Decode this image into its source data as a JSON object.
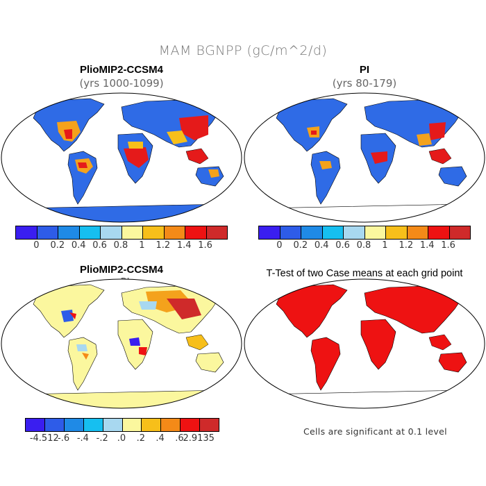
{
  "figure": {
    "title": "MAM BGNPP (gC/m^2/d)"
  },
  "panels": [
    {
      "title": "PlioMIP2-CCSM4",
      "subtitle": "(yrs 1000-1099)"
    },
    {
      "title": "PI",
      "subtitle": "(yrs 80-179)"
    },
    {
      "title": "PlioMIP2-CCSM4",
      "subtitle": "- PI"
    },
    {
      "title": "T-Test of two Case means at each grid point",
      "subtitle": ""
    }
  ],
  "colorbar_top": {
    "colors": [
      "#3a1ef0",
      "#2e5ce8",
      "#1f8ae6",
      "#16bff0",
      "#a8d8f0",
      "#fbf79e",
      "#f7bf1a",
      "#f48a18",
      "#ee1212",
      "#cf2a2a"
    ],
    "labels": [
      "0",
      "0.2",
      "0.4",
      "0.6",
      "0.8",
      "1",
      "1.2",
      "1.4",
      "1.6"
    ]
  },
  "colorbar_diff": {
    "colors": [
      "#3a1ef0",
      "#2e5ce8",
      "#1f8ae6",
      "#16bff0",
      "#a8d8f0",
      "#fbf79e",
      "#f7bf1a",
      "#f48a18",
      "#ee1212",
      "#cf2a2a"
    ],
    "labels": [
      "-4.512",
      "-.6",
      "-.4",
      "-.2",
      ".0",
      ".2",
      ".4",
      ".6",
      "2.9135"
    ]
  },
  "significance_note": "Cells are significant at 0.1 level"
}
